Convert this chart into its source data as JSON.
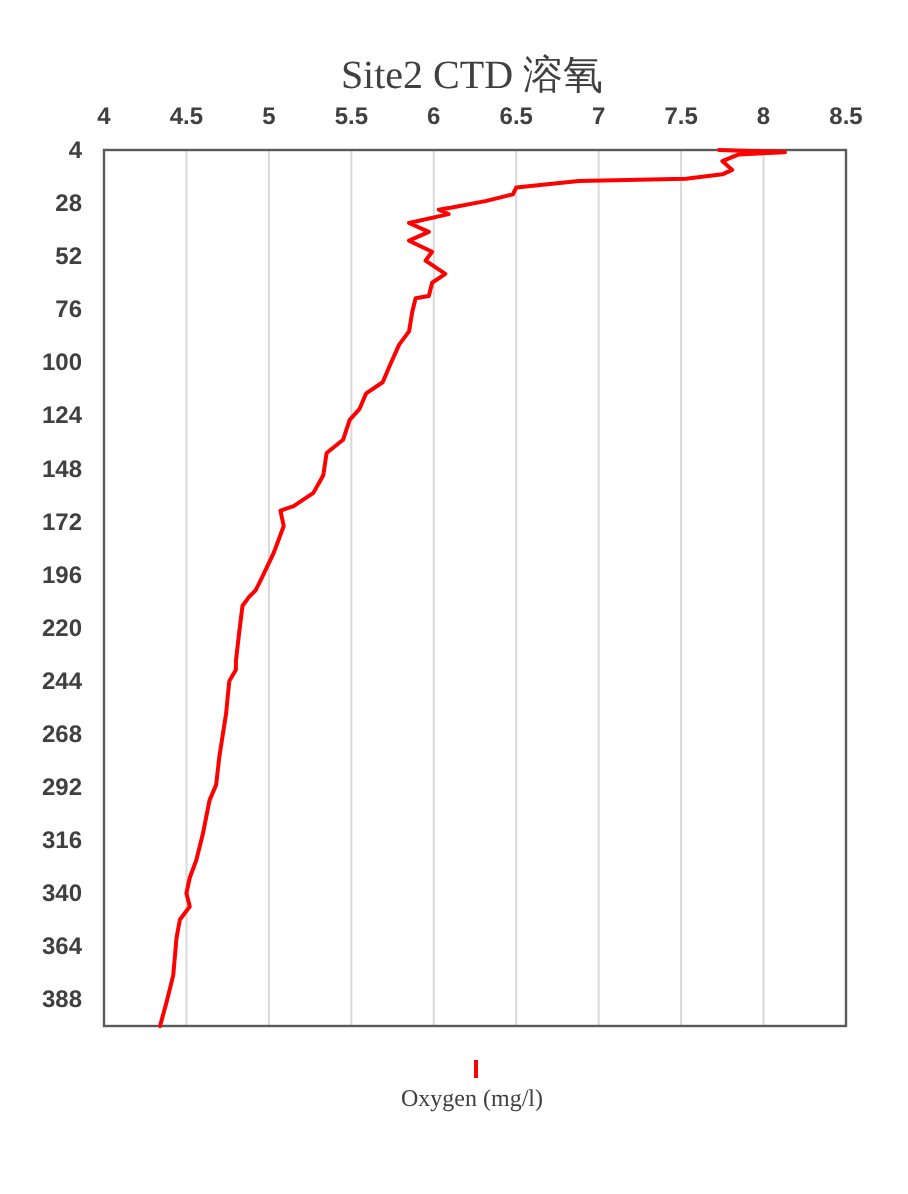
{
  "chart_data": {
    "type": "line",
    "title": "Site2 CTD 溶氧",
    "series": [
      {
        "name": "Oxygen (mg/l)",
        "color": "#ff0000",
        "x": [
          7.73,
          8.13,
          7.85,
          7.75,
          7.81,
          7.75,
          7.53,
          6.88,
          6.5,
          6.48,
          6.32,
          6.11,
          6.03,
          6.09,
          5.85,
          5.97,
          5.85,
          5.99,
          5.95,
          6.07,
          5.99,
          5.97,
          5.89,
          5.87,
          5.85,
          5.79,
          5.73,
          5.69,
          5.59,
          5.55,
          5.49,
          5.45,
          5.35,
          5.33,
          5.27,
          5.15,
          5.07,
          5.09,
          5.03,
          4.96,
          4.92,
          4.88,
          4.84,
          4.82,
          4.8,
          4.8,
          4.76,
          4.74,
          4.7,
          4.68,
          4.64,
          4.6,
          4.56,
          4.52,
          4.5,
          4.52,
          4.46,
          4.44,
          4.42,
          4.38,
          4.34
        ],
        "values": [
          4,
          5,
          6,
          9,
          13,
          15,
          17,
          18,
          21,
          24,
          27,
          30,
          31,
          33,
          37,
          41,
          45,
          50,
          54,
          60,
          64,
          70,
          71,
          77,
          86,
          92,
          102,
          109,
          114,
          121,
          126,
          135,
          141,
          151,
          159,
          165,
          167,
          174,
          186,
          197,
          203,
          206,
          210,
          222,
          235,
          239,
          244,
          259,
          278,
          291,
          298,
          313,
          325,
          333,
          340,
          346,
          352,
          360,
          377,
          389,
          400
        ]
      }
    ],
    "xlim": [
      4,
      8.5
    ],
    "xticks": [
      4,
      4.5,
      5,
      5.5,
      6,
      6.5,
      7,
      7.5,
      8,
      8.5
    ],
    "ylim": [
      400,
      4
    ],
    "yticks": [
      4,
      28,
      52,
      76,
      100,
      124,
      148,
      172,
      196,
      220,
      244,
      268,
      292,
      316,
      340,
      364,
      388
    ],
    "grid": "x",
    "legend": "bottom"
  }
}
